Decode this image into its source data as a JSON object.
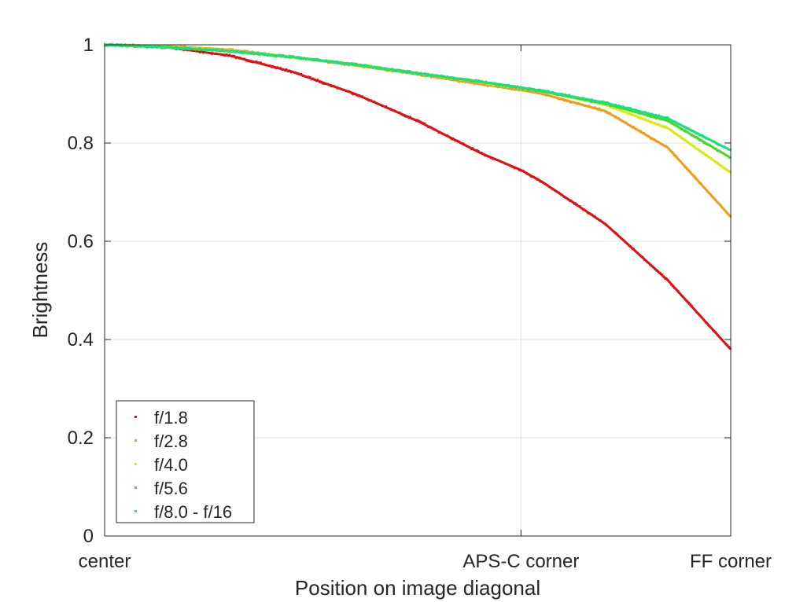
{
  "chart_data": {
    "type": "scatter",
    "title": "",
    "xlabel": "Position on image diagonal",
    "ylabel": "Brightness",
    "x_ticks": [
      {
        "pos": 0.0,
        "label": "center"
      },
      {
        "pos": 0.665,
        "label": "APS-C corner"
      },
      {
        "pos": 1.0,
        "label": "FF corner"
      }
    ],
    "y_ticks": [
      "0",
      "0.2",
      "0.4",
      "0.6",
      "0.8",
      "1"
    ],
    "xlim": [
      0,
      1
    ],
    "ylim": [
      0,
      1
    ],
    "grid": true,
    "legend_position": "bottom-left",
    "series": [
      {
        "name": "f/1.8",
        "color": "#e01010",
        "x": [
          0,
          0.1,
          0.2,
          0.3,
          0.4,
          0.5,
          0.6,
          0.665,
          0.7,
          0.8,
          0.9,
          1.0
        ],
        "y": [
          1.0,
          0.995,
          0.978,
          0.945,
          0.9,
          0.845,
          0.78,
          0.745,
          0.72,
          0.635,
          0.52,
          0.38
        ]
      },
      {
        "name": "f/2.8",
        "color": "#f29b1a",
        "x": [
          0,
          0.1,
          0.2,
          0.3,
          0.4,
          0.5,
          0.6,
          0.665,
          0.7,
          0.8,
          0.9,
          1.0
        ],
        "y": [
          1.0,
          0.997,
          0.99,
          0.975,
          0.958,
          0.94,
          0.92,
          0.908,
          0.9,
          0.865,
          0.79,
          0.65
        ]
      },
      {
        "name": "f/4.0",
        "color": "#d8ea12",
        "x": [
          0,
          0.1,
          0.2,
          0.3,
          0.4,
          0.5,
          0.6,
          0.665,
          0.7,
          0.8,
          0.9,
          1.0
        ],
        "y": [
          1.0,
          0.996,
          0.988,
          0.975,
          0.96,
          0.942,
          0.924,
          0.912,
          0.905,
          0.878,
          0.83,
          0.74
        ]
      },
      {
        "name": "f/5.6",
        "color": "#48d82a",
        "x": [
          0,
          0.1,
          0.2,
          0.3,
          0.4,
          0.5,
          0.6,
          0.665,
          0.7,
          0.8,
          0.9,
          1.0
        ],
        "y": [
          1.0,
          0.995,
          0.987,
          0.975,
          0.96,
          0.942,
          0.925,
          0.913,
          0.905,
          0.88,
          0.845,
          0.77
        ]
      },
      {
        "name": "f/8.0 - f/16",
        "color": "#19e07a",
        "x": [
          0,
          0.1,
          0.2,
          0.3,
          0.4,
          0.5,
          0.6,
          0.665,
          0.7,
          0.8,
          0.9,
          1.0
        ],
        "y": [
          1.0,
          0.995,
          0.987,
          0.975,
          0.96,
          0.942,
          0.925,
          0.913,
          0.906,
          0.882,
          0.85,
          0.785
        ]
      }
    ]
  }
}
